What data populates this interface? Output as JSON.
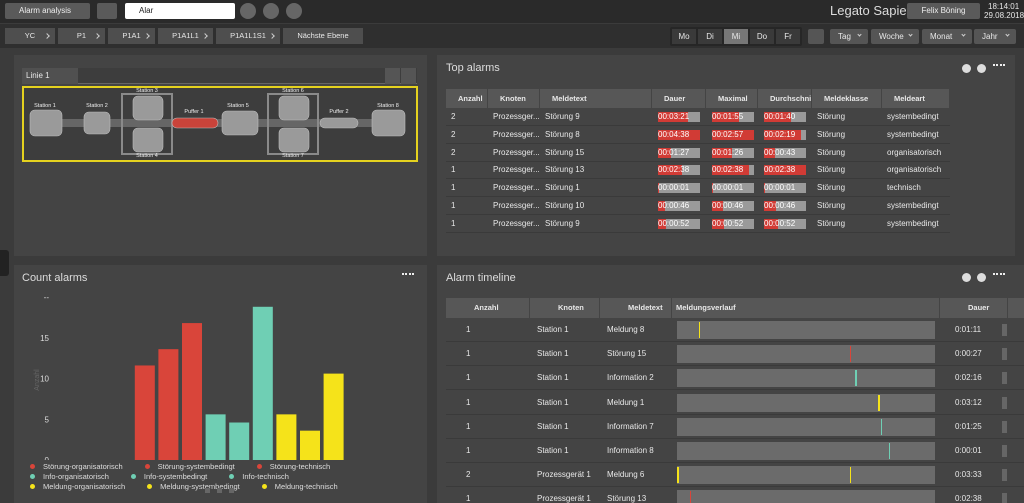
{
  "toolbar": {
    "app_button": "Alarm analysis",
    "search": "Alar",
    "brand": "Legato Sapient",
    "user": "Felix Böning",
    "time": "18:14:01",
    "date": "29.08.2018"
  },
  "breadcrumb": [
    "YC",
    "P1",
    "P1A1",
    "P1A1L1",
    "P1A1L1S1",
    "Nächste Ebene"
  ],
  "weekdays": [
    "Mo",
    "Di",
    "Mi",
    "Do",
    "Fr"
  ],
  "ranges": [
    "Tag",
    "Woche",
    "Monat",
    "Jahr"
  ],
  "line_panel": {
    "tab": "Linie 1",
    "stations": [
      "Station 1",
      "Station 2",
      "Station 3",
      "Puffer 1",
      "Station 5",
      "Station 6",
      "Station 4",
      "Station 7",
      "Puffer 2",
      "Station 8"
    ]
  },
  "top_alarms": {
    "title": "Top alarms",
    "columns": [
      "Anzahl",
      "Knoten",
      "Meldetext",
      "Dauer",
      "Maximal",
      "Durchschnitt",
      "Meldeklasse",
      "Meldeart"
    ],
    "rows": [
      [
        2,
        "Prozessger...",
        "Störung 9",
        "00:03:21",
        "00:01:55",
        "00:01:40",
        "Störung",
        "systembedingt"
      ],
      [
        2,
        "Prozessger...",
        "Störung 8",
        "00:04:38",
        "00:02:57",
        "00:02:19",
        "Störung",
        "systembedingt"
      ],
      [
        2,
        "Prozessger...",
        "Störung 15",
        "00:01:27",
        "00:01:26",
        "00:00:43",
        "Störung",
        "organisatorisch"
      ],
      [
        1,
        "Prozessger...",
        "Störung 13",
        "00:02:38",
        "00:02:38",
        "00:02:38",
        "Störung",
        "organisatorisch"
      ],
      [
        1,
        "Prozessger...",
        "Störung 1",
        "00:00:01",
        "00:00:01",
        "00:00:01",
        "Störung",
        "technisch"
      ],
      [
        1,
        "Prozessger...",
        "Störung 10",
        "00:00:46",
        "00:00:46",
        "00:00:46",
        "Störung",
        "systembedingt"
      ],
      [
        1,
        "Prozessger...",
        "Störung 9",
        "00:00:52",
        "00:00:52",
        "00:00:52",
        "Störung",
        "systembedingt"
      ]
    ]
  },
  "chart_data": {
    "type": "bar",
    "title": "Count alarms",
    "y_label": "Anzahl",
    "categories": [
      "Störung-organisatorisch",
      "Störung-systembedingt",
      "Störung-technisch",
      "Info-organisatorisch",
      "Info-systembedingt",
      "Info-technisch",
      "Meldung-organisatorisch",
      "Meldung-systembedingt",
      "Meldung-technisch"
    ],
    "colors": [
      "#d9453a",
      "#d9453a",
      "#d9453a",
      "#6fcfb4",
      "#6fcfb4",
      "#6fcfb4",
      "#f5e31a",
      "#f5e31a",
      "#f5e31a"
    ],
    "values": [
      11.6,
      13.6,
      16.8,
      5.6,
      4.6,
      18.8,
      5.6,
      3.6,
      10.6
    ],
    "ylim": [
      0,
      20
    ],
    "yticks": [
      0,
      5,
      10,
      15,
      {
        "value": 20,
        "label": "--"
      }
    ]
  },
  "alarm_timeline": {
    "title": "Alarm timeline",
    "columns": [
      "Anzahl",
      "Knoten",
      "Meldetext",
      "Meldungsverlauf",
      "Dauer"
    ],
    "rows": [
      {
        "cells": [
          1,
          "Station 1",
          "Meldung 8"
        ],
        "events": [
          0.085
        ],
        "color": "#f5e31a",
        "dauer": "0:01:11"
      },
      {
        "cells": [
          1,
          "Station 1",
          "Störung 15"
        ],
        "events": [
          0.67
        ],
        "color": "#d9453a",
        "dauer": "0:00:27"
      },
      {
        "cells": [
          1,
          "Station 1",
          "Information 2"
        ],
        "events": [
          0.69
        ],
        "color": "#6fcfb4",
        "dauer": "0:02:16"
      },
      {
        "cells": [
          1,
          "Station 1",
          "Meldung 1"
        ],
        "events": [
          0.78
        ],
        "color": "#f5e31a",
        "dauer": "0:03:12"
      },
      {
        "cells": [
          1,
          "Station 1",
          "Information 7"
        ],
        "events": [
          0.79
        ],
        "color": "#6fcfb4",
        "dauer": "0:01:25"
      },
      {
        "cells": [
          1,
          "Station 1",
          "Information 8"
        ],
        "events": [
          0.82
        ],
        "color": "#6fcfb4",
        "dauer": "0:00:01"
      },
      {
        "cells": [
          2,
          "Prozessgerät 1",
          "Meldung 6"
        ],
        "events": [
          0.0,
          0.67
        ],
        "color": "#f5e31a",
        "dauer": "0:03:33"
      },
      {
        "cells": [
          1,
          "Prozessgerät 1",
          "Störung 13"
        ],
        "events": [
          0.05
        ],
        "color": "#d9453a",
        "dauer": "0:02:38"
      }
    ]
  }
}
